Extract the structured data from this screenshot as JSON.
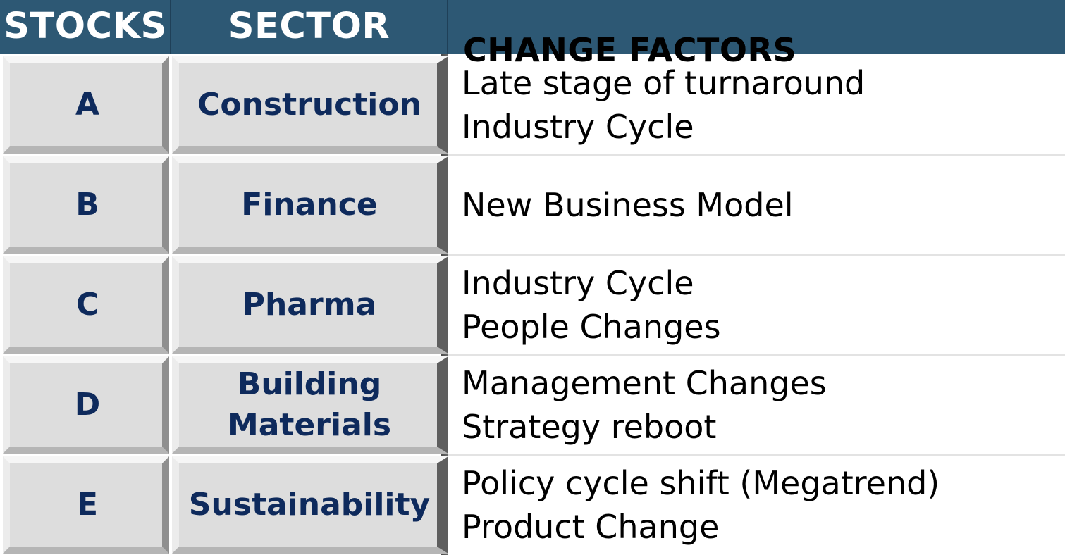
{
  "header": {
    "stocks": "STOCKS",
    "sector": "SECTOR",
    "change_factors": "CHANGE FACTORS"
  },
  "rows": [
    {
      "stock": "A",
      "sector_lines": [
        "Construction"
      ],
      "factors": [
        "Late stage of turnaround",
        "Industry Cycle"
      ]
    },
    {
      "stock": "B",
      "sector_lines": [
        "Finance"
      ],
      "factors": [
        "New Business Model"
      ]
    },
    {
      "stock": "C",
      "sector_lines": [
        "Pharma"
      ],
      "factors": [
        "Industry Cycle",
        "People Changes"
      ]
    },
    {
      "stock": "D",
      "sector_lines": [
        "Building",
        "Materials"
      ],
      "factors": [
        "Management Changes",
        "Strategy reboot"
      ]
    },
    {
      "stock": "E",
      "sector_lines": [
        "Sustainability"
      ],
      "factors": [
        "Policy cycle shift (Megatrend)",
        "Product Change"
      ]
    }
  ],
  "colors": {
    "header_bg": "#2d5874",
    "button_text": "#0e2a5c"
  }
}
